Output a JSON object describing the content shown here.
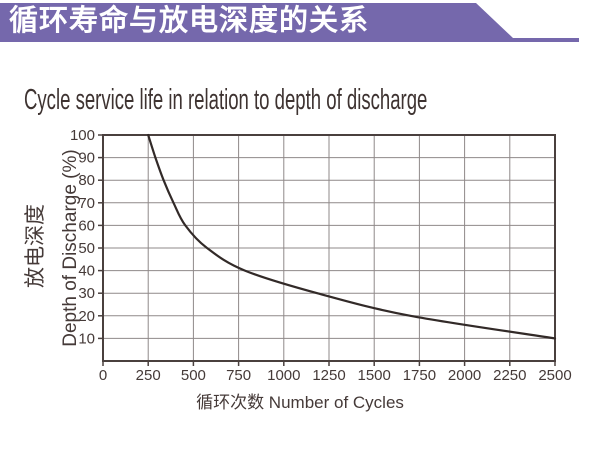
{
  "page": {
    "banner_title": "循环寿命与放电深度的关系",
    "title": "Cycle service life in relation to depth of discharge"
  },
  "colors": {
    "banner_bg": "#7568ac",
    "banner_text": "#ffffff",
    "text": "#453a38",
    "title_text": "#3e3331",
    "grid": "#8f8989",
    "frame": "#4a403e",
    "curve": "#322a28",
    "background": "#ffffff"
  },
  "chart_data": {
    "type": "line",
    "title": "Cycle service life in relation to depth of discharge",
    "xlabel": "循环次数 Number of Cycles",
    "ylabel_cn": "放电深度",
    "ylabel_en": "Depth of Discharge (%)",
    "xlim": [
      0,
      2500
    ],
    "ylim": [
      0,
      100
    ],
    "x_ticks": [
      0,
      250,
      500,
      750,
      1000,
      1250,
      1500,
      1750,
      2000,
      2250,
      2500
    ],
    "y_ticks": [
      10,
      20,
      30,
      40,
      50,
      60,
      70,
      80,
      90,
      100
    ],
    "grid": true,
    "legend": "none",
    "series": [
      {
        "name": "depth-of-discharge-vs-cycles",
        "x": [
          250,
          290,
          335,
          390,
          455,
          575,
          785,
          1185,
          1700,
          2500
        ],
        "y": [
          100,
          90,
          80,
          70,
          60,
          50,
          40,
          30,
          20,
          10
        ]
      }
    ]
  }
}
